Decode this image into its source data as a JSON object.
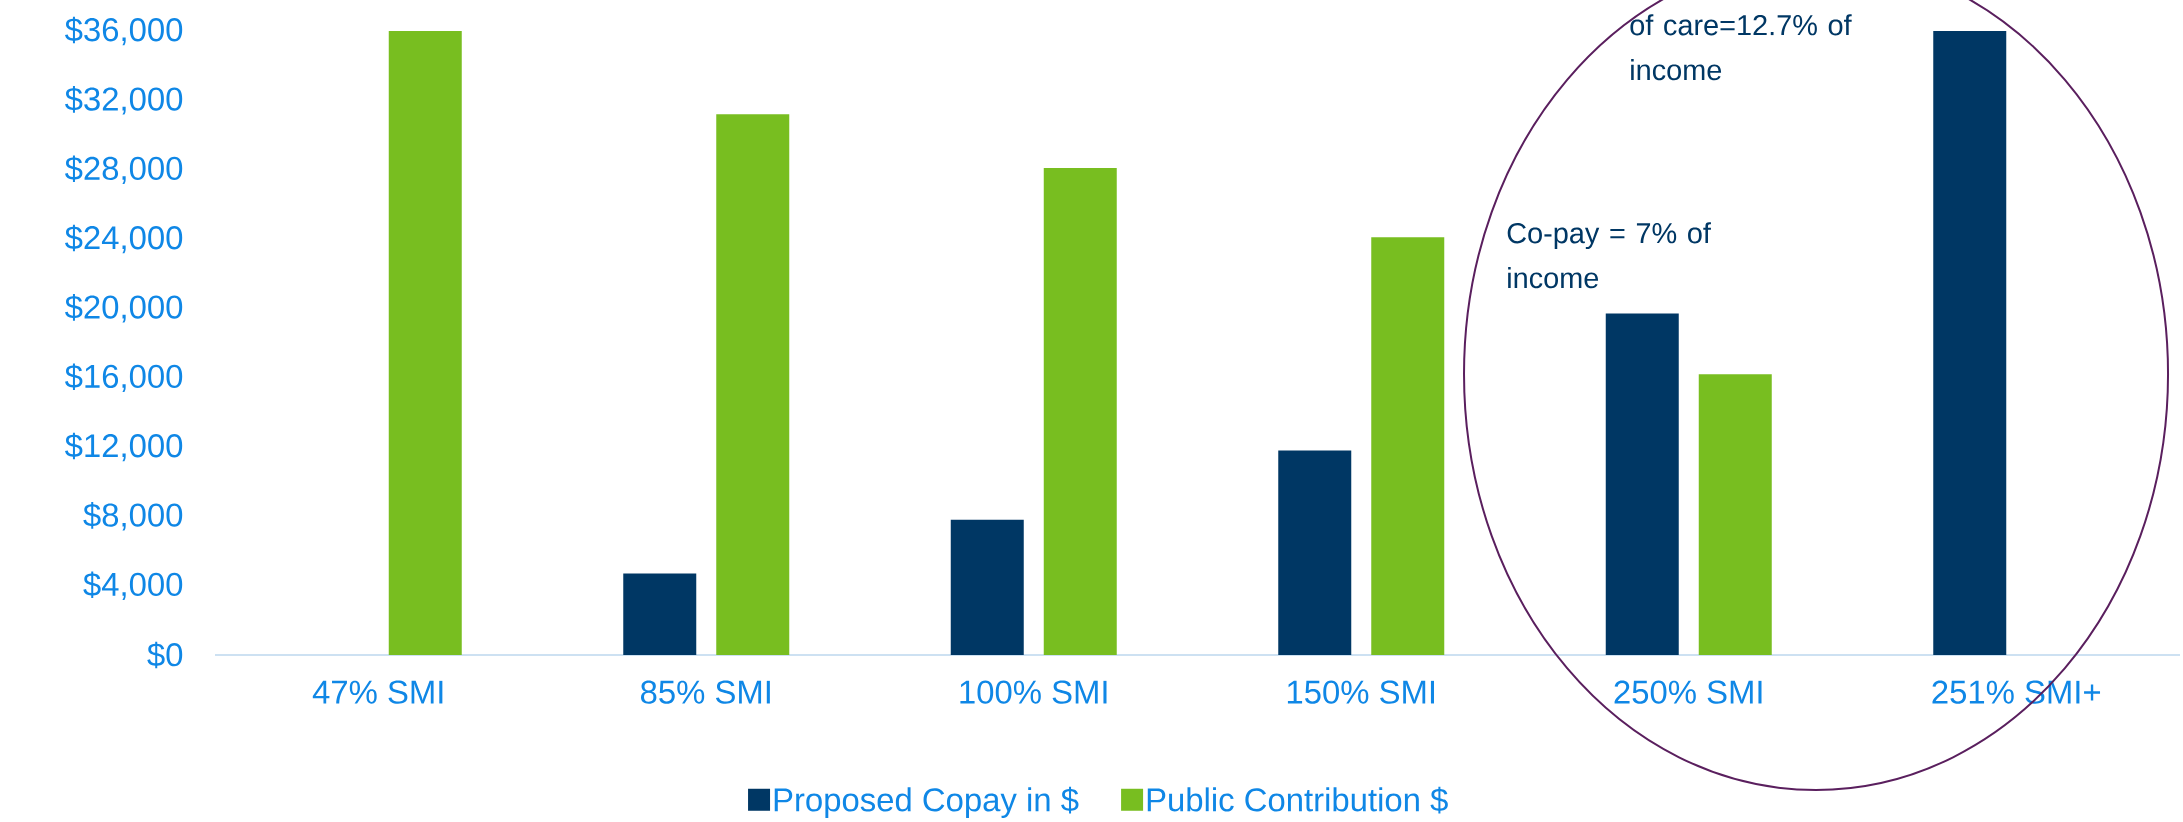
{
  "chart_data": {
    "type": "bar",
    "categories": [
      "47% SMI",
      "85% SMI",
      "100% SMI",
      "150% SMI",
      "250% SMI",
      "251% SMI+"
    ],
    "series": [
      {
        "name": "Proposed Copay in $",
        "color": "#003764",
        "values": [
          null,
          4700,
          7800,
          11800,
          19700,
          36000
        ]
      },
      {
        "name": "Public Contribution $",
        "color": "#78be20",
        "values": [
          36000,
          31200,
          28100,
          24100,
          16200,
          null
        ]
      }
    ],
    "ylim": [
      0,
      36000
    ],
    "yticks": [
      {
        "value": 0,
        "label": "$0"
      },
      {
        "value": 4000,
        "label": "$4,000"
      },
      {
        "value": 8000,
        "label": "$8,000"
      },
      {
        "value": 12000,
        "label": "$12,000"
      },
      {
        "value": 16000,
        "label": "$16,000"
      },
      {
        "value": 20000,
        "label": "$20,000"
      },
      {
        "value": 24000,
        "label": "$24,000"
      },
      {
        "value": 28000,
        "label": "$28,000"
      },
      {
        "value": 32000,
        "label": "$32,000"
      },
      {
        "value": 36000,
        "label": "$36,000"
      }
    ],
    "grid": false,
    "legend": "bottom",
    "annotations": [
      "Co-pay = 7% of income",
      "of care=12.7% of income"
    ]
  }
}
